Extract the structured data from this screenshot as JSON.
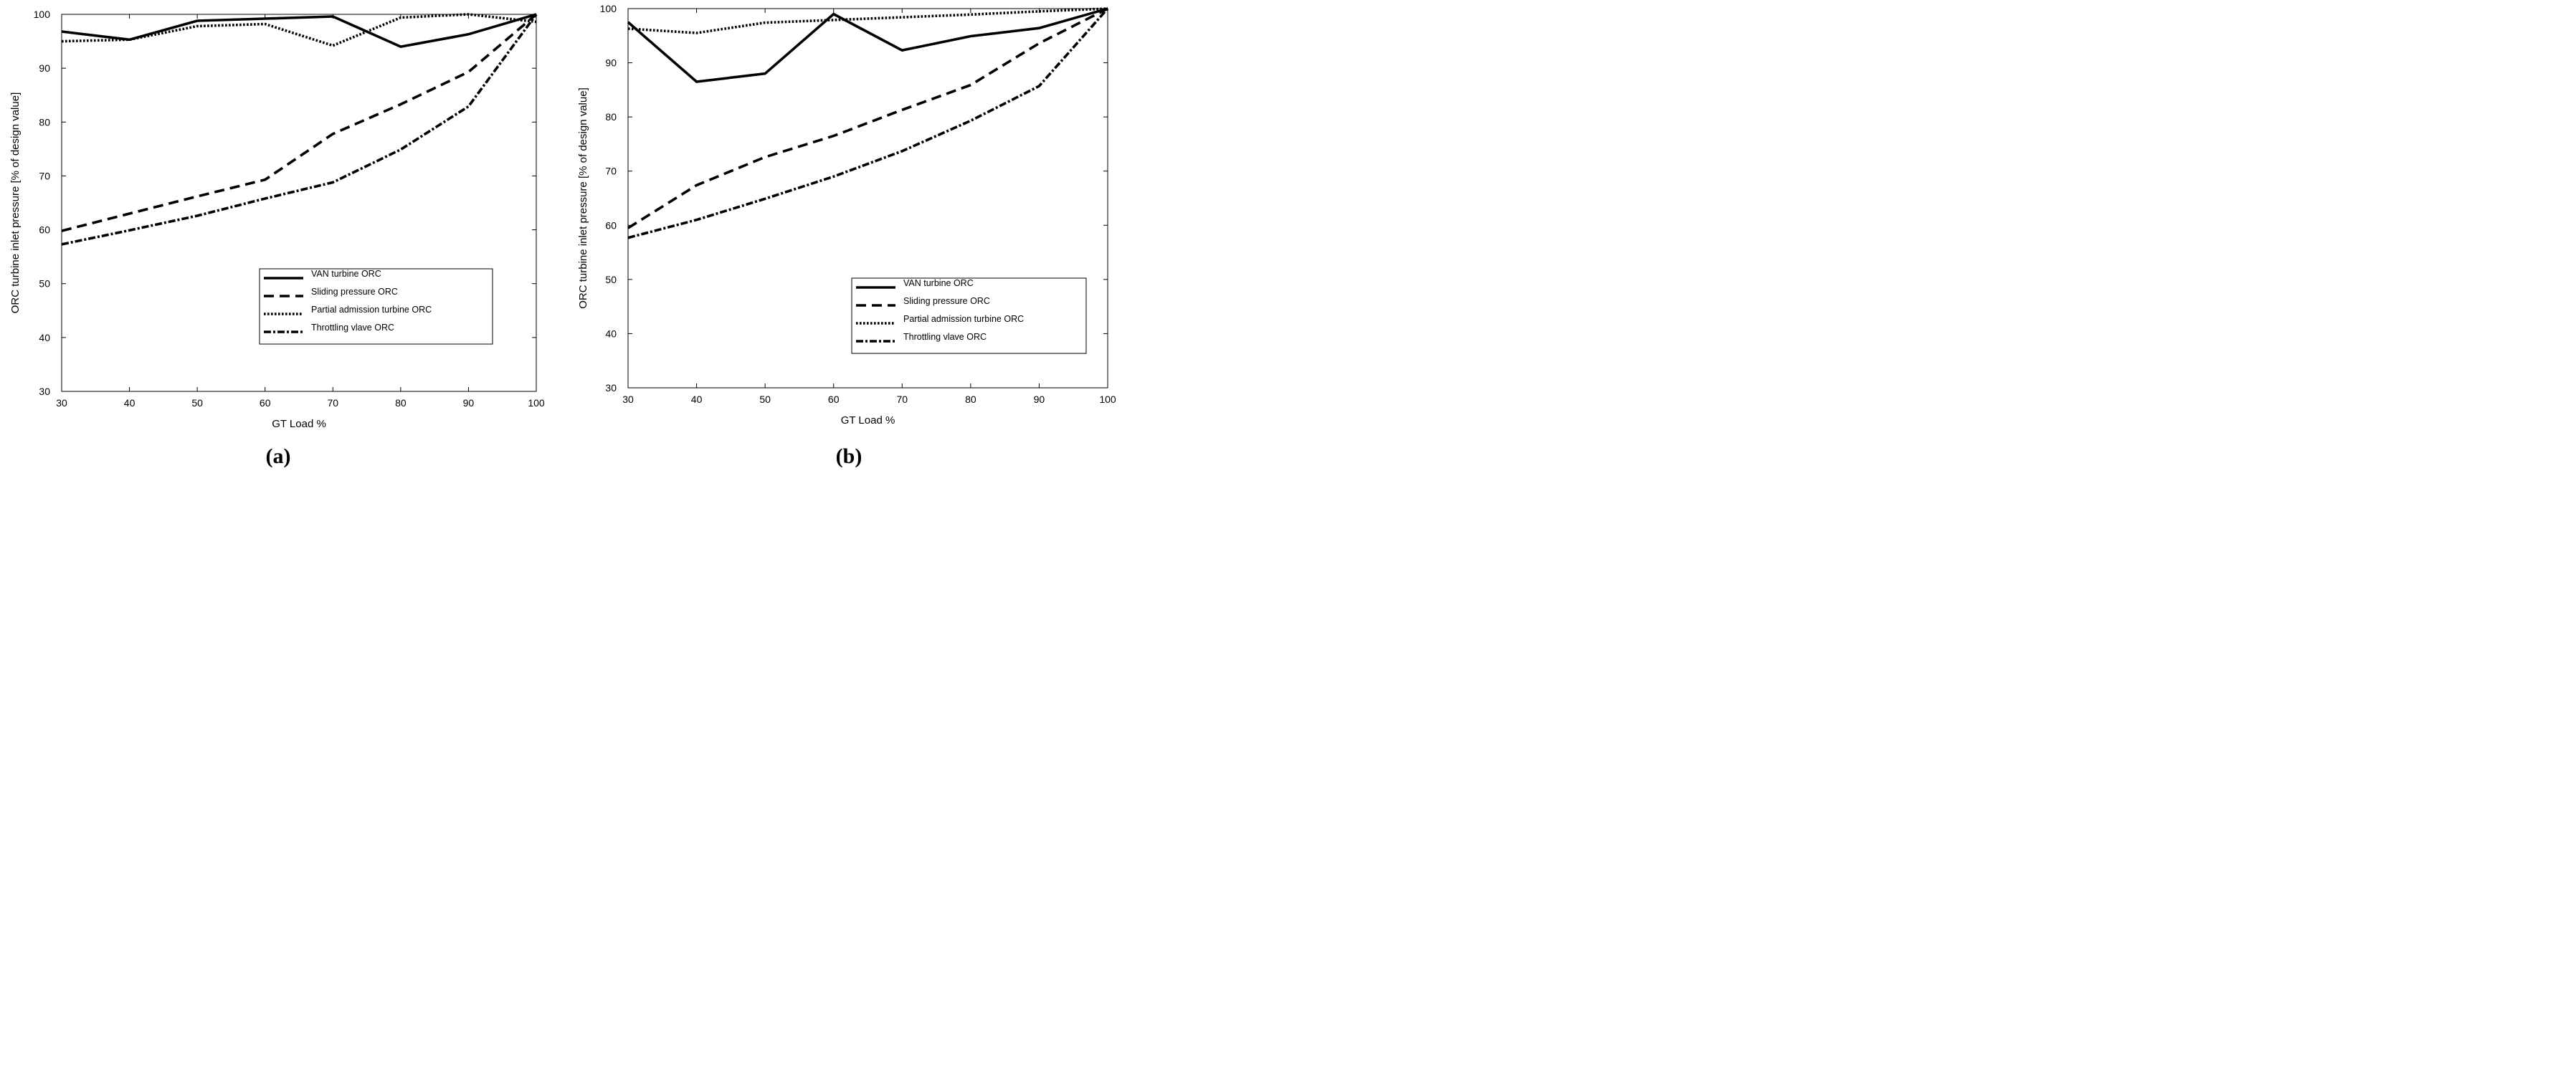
{
  "chart_data": [
    {
      "type": "line",
      "panel_label": "(a)",
      "title": "",
      "xlabel": "GT Load %",
      "ylabel": "ORC turbine inlet pressure  [% of design value]",
      "xlim": [
        30,
        100
      ],
      "ylim": [
        30,
        100
      ],
      "xticks": [
        30,
        40,
        50,
        60,
        70,
        80,
        90,
        100
      ],
      "yticks": [
        30,
        40,
        50,
        60,
        70,
        80,
        90,
        100
      ],
      "x": [
        30,
        40,
        50,
        60,
        70,
        80,
        90,
        100
      ],
      "grid": false,
      "legend_position": "lower-right",
      "series": [
        {
          "name": "VAN turbine ORC",
          "style": "solid",
          "values": [
            96.8,
            95.3,
            98.8,
            99.2,
            99.6,
            94.0,
            96.3,
            100
          ]
        },
        {
          "name": "Sliding pressure ORC",
          "style": "dashed",
          "values": [
            59.8,
            63.0,
            66.2,
            69.3,
            77.8,
            83.3,
            89.3,
            100
          ]
        },
        {
          "name": "Partial admission turbine ORC",
          "style": "dotted",
          "values": [
            95.0,
            95.3,
            97.8,
            98.2,
            94.2,
            99.4,
            100,
            98.6
          ]
        },
        {
          "name": "Throttling vlave ORC",
          "style": "dashdot",
          "values": [
            57.3,
            59.9,
            62.6,
            65.8,
            68.8,
            74.9,
            82.9,
            100
          ]
        }
      ]
    },
    {
      "type": "line",
      "panel_label": "(b)",
      "title": "",
      "xlabel": "GT Load %",
      "ylabel": "ORC turbine inlet pressure  [% of design value]",
      "xlim": [
        30,
        100
      ],
      "ylim": [
        30,
        100
      ],
      "xticks": [
        30,
        40,
        50,
        60,
        70,
        80,
        90,
        100
      ],
      "yticks": [
        30,
        40,
        50,
        60,
        70,
        80,
        90,
        100
      ],
      "x": [
        30,
        40,
        50,
        60,
        70,
        80,
        90,
        100
      ],
      "grid": false,
      "legend_position": "lower-right",
      "series": [
        {
          "name": "VAN turbine ORC",
          "style": "solid",
          "values": [
            97.5,
            86.5,
            88.0,
            99.0,
            92.3,
            94.9,
            96.4,
            100
          ]
        },
        {
          "name": "Sliding pressure ORC",
          "style": "dashed",
          "values": [
            59.5,
            67.4,
            72.6,
            76.5,
            81.3,
            85.9,
            93.6,
            100
          ]
        },
        {
          "name": "Partial admission turbine ORC",
          "style": "dotted",
          "values": [
            96.3,
            95.5,
            97.4,
            97.9,
            98.4,
            98.9,
            99.5,
            100
          ]
        },
        {
          "name": "Throttling vlave ORC",
          "style": "dashdot",
          "values": [
            57.7,
            61.0,
            64.9,
            69.0,
            73.7,
            79.3,
            85.7,
            100
          ]
        }
      ]
    }
  ]
}
